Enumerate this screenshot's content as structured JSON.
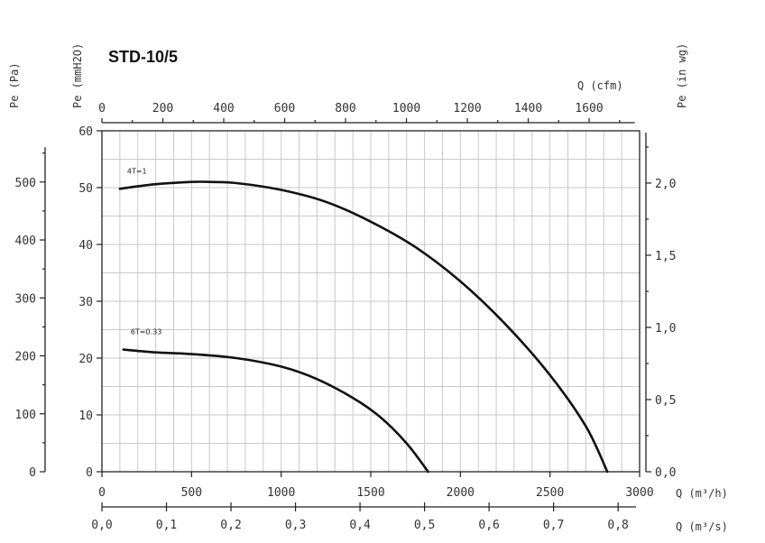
{
  "chart_data": {
    "type": "line",
    "title": "STD-10/5",
    "x_axes": {
      "m3h": {
        "label": "Q (m³/h)",
        "range": [
          0,
          3000
        ],
        "ticks": [
          0,
          500,
          1000,
          1500,
          2000,
          2500,
          3000
        ]
      },
      "m3s": {
        "label": "Q (m³/s)",
        "ticks": [
          "0,0",
          "0,1",
          "0,2",
          "0,3",
          "0,4",
          "0,5",
          "0,6",
          "0,7",
          "0,8"
        ],
        "tick_values_m3s": [
          0,
          0.1,
          0.2,
          0.3,
          0.4,
          0.5,
          0.6,
          0.7,
          0.8
        ]
      },
      "cfm": {
        "label": "Q (cfm)",
        "ticks": [
          0,
          200,
          400,
          600,
          800,
          1000,
          1200,
          1400,
          1600
        ]
      }
    },
    "y_axes": {
      "mmH2O": {
        "label": "Pe (mmH2O)",
        "range": [
          0,
          60
        ],
        "ticks": [
          0,
          10,
          20,
          30,
          40,
          50,
          60
        ]
      },
      "pa": {
        "label": "Pe (Pa)",
        "ticks": [
          0,
          100,
          200,
          300,
          400,
          500
        ]
      },
      "inwg": {
        "label": "Pe (in wg)",
        "ticks": [
          "0,0",
          "0,5",
          "1,0",
          "1,5",
          "2,0"
        ],
        "tick_values_inwg": [
          0,
          0.5,
          1.0,
          1.5,
          2.0
        ]
      }
    },
    "grid": true,
    "series": [
      {
        "name": "4T=1",
        "x": [
          100,
          300,
          500,
          600,
          750,
          1000,
          1250,
          1500,
          1750,
          2000,
          2250,
          2500,
          2700,
          2820
        ],
        "y": [
          49.8,
          50.6,
          51,
          51,
          50.8,
          49.6,
          47.5,
          44,
          39.5,
          33.5,
          26,
          17,
          8,
          0
        ]
      },
      {
        "name": "6T=0.33",
        "x": [
          120,
          300,
          500,
          750,
          1000,
          1200,
          1400,
          1550,
          1700,
          1820
        ],
        "y": [
          21.5,
          21,
          20.7,
          20,
          18.5,
          16.3,
          13,
          9.7,
          5,
          0
        ]
      }
    ]
  }
}
